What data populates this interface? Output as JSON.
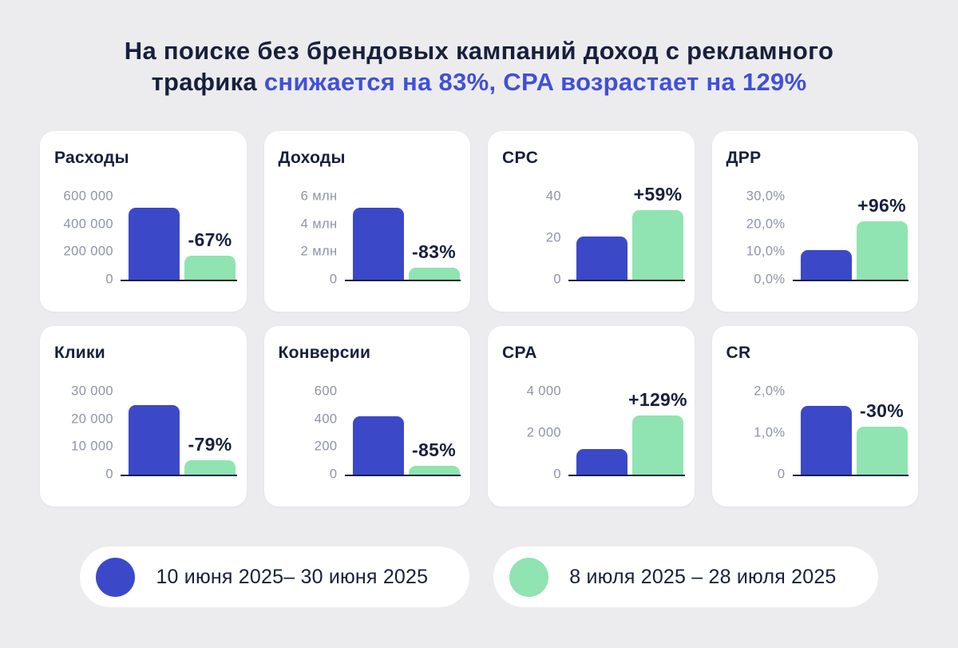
{
  "page": {
    "background": "#ECECEE",
    "title": {
      "line1_dark": "На поиске без брендовых кампаний доход с рекламного",
      "line2_dark": "трафика",
      "line2_accent": "снижается на 83%, CPA возрастает на 129%"
    },
    "colors": {
      "dark_navy": "#181F3D",
      "accent_blue_text": "#4150D9",
      "bar_blue": "#3B49C9",
      "bar_green": "#8FE4B1",
      "tick_gray": "#8E93A8",
      "card_bg": "#FFFFFF"
    }
  },
  "chart_data": [
    {
      "type": "bar",
      "metric": "Расходы",
      "ylim": [
        0,
        600000
      ],
      "yticks": [
        "600 000",
        "400 000",
        "200 000",
        "0"
      ],
      "grid": false,
      "series": [
        {
          "name": "10 июня 2025– 30 июня 2025",
          "value": 520000
        },
        {
          "name": "8 июля 2025 – 28 июля 2025",
          "value": 172000
        }
      ],
      "change_label": "-67%"
    },
    {
      "type": "bar",
      "metric": "Доходы",
      "ylim": [
        0,
        6000000
      ],
      "yticks": [
        "6 млн",
        "4 млн",
        "2 млн",
        "0"
      ],
      "grid": false,
      "series": [
        {
          "name": "10 июня 2025– 30 июня 2025",
          "value": 5200000
        },
        {
          "name": "8 июля 2025 – 28 июля 2025",
          "value": 900000
        }
      ],
      "change_label": "-83%"
    },
    {
      "type": "bar",
      "metric": "CPC",
      "ylim": [
        0,
        40
      ],
      "yticks": [
        "40",
        "20",
        "0"
      ],
      "grid": false,
      "series": [
        {
          "name": "10 июня 2025– 30 июня 2025",
          "value": 21
        },
        {
          "name": "8 июля 2025 – 28 июля 2025",
          "value": 33.5
        }
      ],
      "change_label": "+59%"
    },
    {
      "type": "bar",
      "metric": "ДРР",
      "ylim": [
        0,
        30
      ],
      "yticks": [
        "30,0%",
        "20,0%",
        "10,0%",
        "0,0%"
      ],
      "grid": false,
      "series": [
        {
          "name": "10 июня 2025– 30 июня 2025",
          "value": 10.7
        },
        {
          "name": "8 июля 2025 – 28 июля 2025",
          "value": 21.0
        }
      ],
      "change_label": "+96%"
    },
    {
      "type": "bar",
      "metric": "Клики",
      "ylim": [
        0,
        30000
      ],
      "yticks": [
        "30 000",
        "20 000",
        "10 000",
        "0"
      ],
      "grid": false,
      "series": [
        {
          "name": "10 июня 2025– 30 июня 2025",
          "value": 25000
        },
        {
          "name": "8 июля 2025 – 28 июля 2025",
          "value": 5300
        }
      ],
      "change_label": "-79%"
    },
    {
      "type": "bar",
      "metric": "Конверсии",
      "ylim": [
        0,
        600
      ],
      "yticks": [
        "600",
        "400",
        "200",
        "0"
      ],
      "grid": false,
      "series": [
        {
          "name": "10 июня 2025– 30 июня 2025",
          "value": 420
        },
        {
          "name": "8 июля 2025 – 28 июля 2025",
          "value": 63
        }
      ],
      "change_label": "-85%"
    },
    {
      "type": "bar",
      "metric": "CPA",
      "ylim": [
        0,
        4000
      ],
      "yticks": [
        "4 000",
        "2 000",
        "0"
      ],
      "grid": false,
      "series": [
        {
          "name": "10 июня 2025– 30 июня 2025",
          "value": 1250
        },
        {
          "name": "8 июля 2025 – 28 июля 2025",
          "value": 2860
        }
      ],
      "change_label": "+129%"
    },
    {
      "type": "bar",
      "metric": "CR",
      "ylim": [
        0,
        2
      ],
      "yticks": [
        "2,0%",
        "1,0%",
        "0"
      ],
      "grid": false,
      "series": [
        {
          "name": "10 июня 2025– 30 июня 2025",
          "value": 1.65
        },
        {
          "name": "8 июля 2025 – 28 июля 2025",
          "value": 1.15
        }
      ],
      "change_label": "-30%"
    }
  ],
  "legend": {
    "position": "bottom",
    "items": [
      {
        "name": "period-1",
        "swatch_color": "#3B49C9",
        "label": "10 июня 2025– 30 июня 2025"
      },
      {
        "name": "period-2",
        "swatch_color": "#8FE4B1",
        "label": "8 июля 2025 – 28 июля 2025"
      }
    ]
  }
}
